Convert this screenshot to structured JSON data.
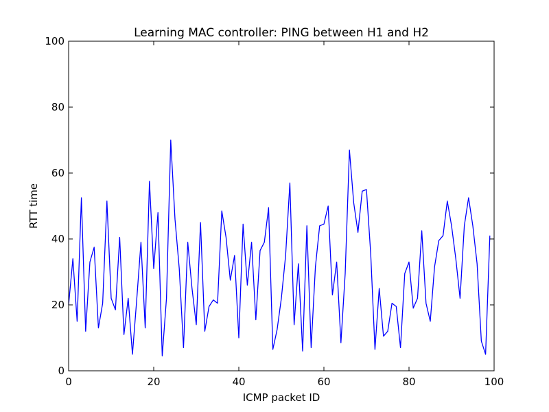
{
  "chart_data": {
    "type": "line",
    "title": "Learning MAC controller: PING between H1 and H2",
    "xlabel": "ICMP packet ID",
    "ylabel": "RTT time",
    "xlim": [
      0,
      100
    ],
    "ylim": [
      0,
      100
    ],
    "xticks": [
      0,
      20,
      40,
      60,
      80,
      100
    ],
    "yticks": [
      0,
      20,
      40,
      60,
      80,
      100
    ],
    "grid": false,
    "legend": "none",
    "line_color": "#0000ff",
    "series": [
      {
        "x": [
          0,
          1,
          2,
          3,
          4,
          5,
          6,
          7,
          8,
          9,
          10,
          11,
          12,
          13,
          14,
          15,
          16,
          17,
          18,
          19,
          20,
          21,
          22,
          23,
          24,
          25,
          26,
          27,
          28,
          29,
          30,
          31,
          32,
          33,
          34,
          35,
          36,
          37,
          38,
          39,
          40,
          41,
          42,
          43,
          44,
          45,
          46,
          47,
          48,
          49,
          50,
          51,
          52,
          53,
          54,
          55,
          56,
          57,
          58,
          59,
          60,
          61,
          62,
          63,
          64,
          65,
          66,
          67,
          68,
          69,
          70,
          71,
          72,
          73,
          74,
          75,
          76,
          77,
          78,
          79,
          80,
          81,
          82,
          83,
          84,
          85,
          86,
          87,
          88,
          89,
          90,
          91,
          92,
          93,
          94,
          95,
          96,
          97,
          98,
          99
        ],
        "values": [
          20,
          34,
          15,
          52.5,
          12,
          33,
          37.5,
          13,
          20.5,
          51.5,
          22,
          18.5,
          40.5,
          11,
          22,
          5,
          21.5,
          39,
          13,
          57.5,
          31,
          48,
          4.5,
          22,
          70,
          46,
          31,
          7,
          39,
          25,
          14,
          45,
          12,
          19.5,
          21.5,
          20.5,
          48.5,
          40.5,
          27.5,
          35,
          10,
          44.5,
          26,
          39,
          15.5,
          36.5,
          39,
          49.5,
          6.5,
          12.5,
          22,
          35,
          57,
          14,
          32.5,
          6,
          44,
          7,
          31.5,
          44,
          44.5,
          50,
          23,
          33,
          8.5,
          29.5,
          67,
          51,
          42,
          54.5,
          55,
          35.5,
          6.5,
          25,
          10.5,
          12,
          20.5,
          19.5,
          7,
          29.5,
          33,
          19,
          22,
          42.5,
          20.5,
          15,
          31.5,
          39.5,
          41,
          51.5,
          44,
          34,
          22,
          44,
          52.5,
          44,
          32.5,
          9,
          5,
          41
        ]
      }
    ]
  }
}
